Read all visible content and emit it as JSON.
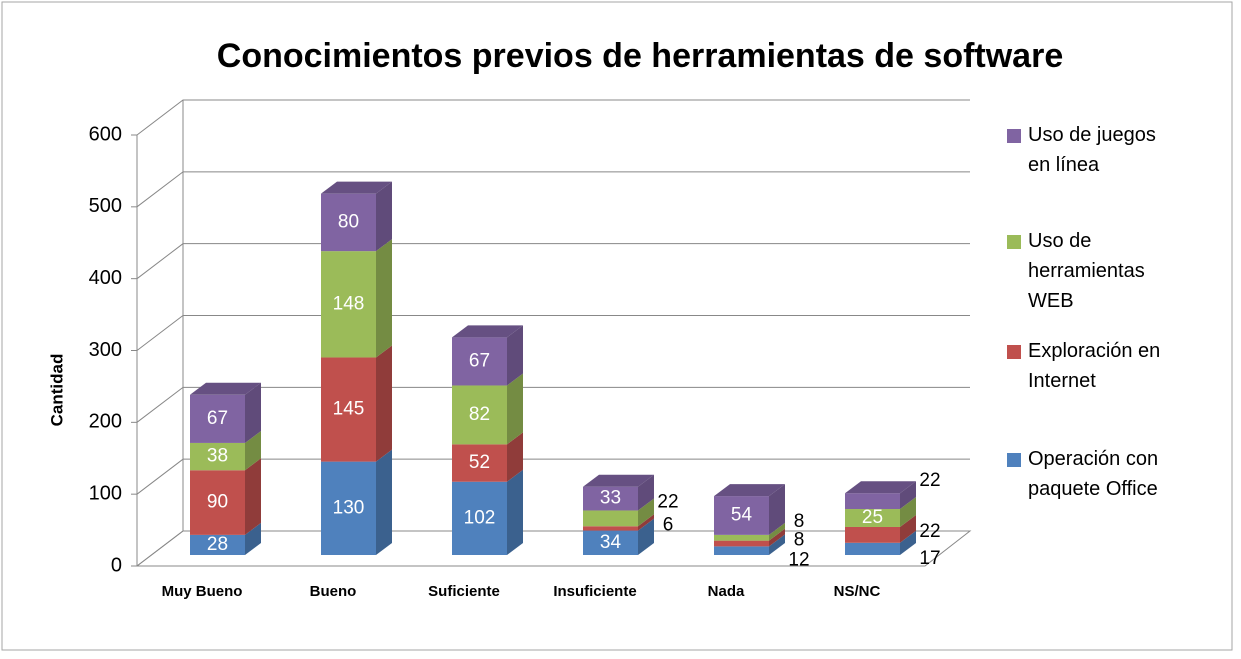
{
  "chart_data": {
    "type": "bar3d_stacked",
    "title": "Conocimientos previos de herramientas de software",
    "y_label": "Cantidad",
    "categories": [
      "Muy Bueno",
      "Bueno",
      "Suficiente",
      "Insuficiente",
      "Nada",
      "NS/NC"
    ],
    "series": [
      {
        "name": "Operación con paquete Office",
        "color": "#4f81bd",
        "values": [
          28,
          130,
          102,
          34,
          12,
          17
        ]
      },
      {
        "name": "Exploración en Internet",
        "color": "#c0504d",
        "values": [
          90,
          145,
          52,
          6,
          8,
          22
        ]
      },
      {
        "name": "Uso de herramientas WEB",
        "color": "#9bbb59",
        "values": [
          38,
          148,
          82,
          22,
          8,
          25
        ]
      },
      {
        "name": "Uso de juegos en línea",
        "color": "#8064a2",
        "values": [
          67,
          80,
          67,
          33,
          54,
          22
        ]
      }
    ],
    "ylim": [
      0,
      600
    ],
    "yticks": [
      0,
      100,
      200,
      300,
      400,
      500,
      600
    ],
    "grid": true,
    "legend": "right"
  }
}
